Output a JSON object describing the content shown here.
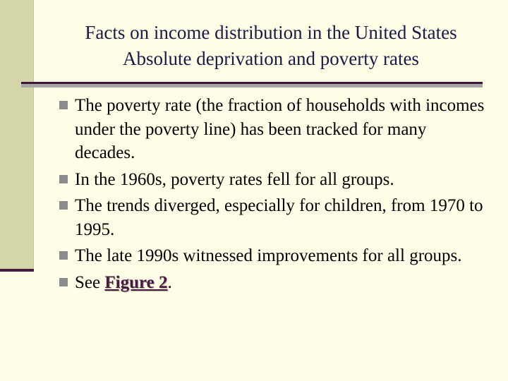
{
  "slide": {
    "title_line1": "Facts on income distribution in the United States",
    "title_line2": "Absolute deprivation and poverty rates",
    "bullets": [
      "The poverty rate (the fraction of households with incomes under the poverty line) has been tracked for many decades.",
      "In the 1960s, poverty rates fell for all groups.",
      "The trends diverged, especially for children, from 1970 to 1995.",
      "The late 1990s witnessed improvements for all groups."
    ],
    "last_bullet": {
      "prefix": "See ",
      "link_text": "Figure 2",
      "suffix": "."
    },
    "bullet_icon": "square-bullet-icon",
    "colors": {
      "background": "#fefee6",
      "title": "#1c1848",
      "accent": "#4a1941",
      "bullet": "#8c8c8c"
    }
  }
}
